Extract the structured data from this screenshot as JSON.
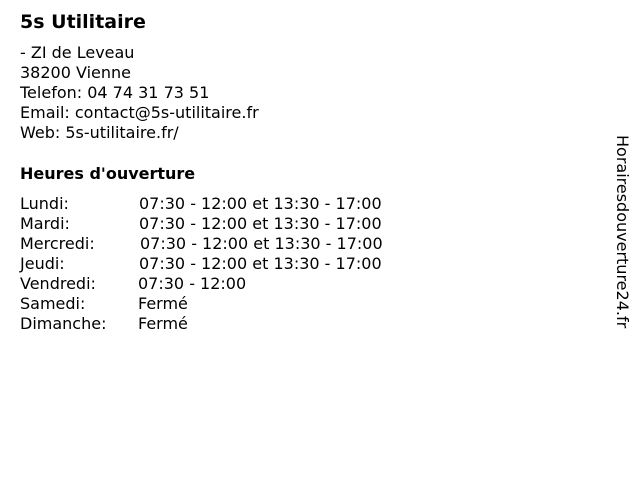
{
  "business": {
    "name": "5s Utilitaire"
  },
  "address": [
    "- ZI de Leveau",
    "38200 Vienne",
    "Telefon: 04 74 31 73 51",
    "Email: contact@5s-utilitaire.fr",
    "Web: 5s-utilitaire.fr/"
  ],
  "hours": {
    "heading": "Heures d'ouverture",
    "rows": [
      {
        "day": "Lundi:",
        "time": "07:30 - 12:00 et 13:30 - 17:00"
      },
      {
        "day": "Mardi:",
        "time": "07:30 - 12:00 et 13:30 - 17:00"
      },
      {
        "day": "Mercredi:",
        "time": "07:30 - 12:00 et 13:30 - 17:00"
      },
      {
        "day": "Jeudi:",
        "time": "07:30 - 12:00 et 13:30 - 17:00"
      },
      {
        "day": "Vendredi:",
        "time": "07:30 - 12:00"
      },
      {
        "day": "Samedi:",
        "time": "Fermé"
      },
      {
        "day": "Dimanche:",
        "time": "Fermé"
      }
    ]
  },
  "watermark": "Horairesdouverture24.fr"
}
